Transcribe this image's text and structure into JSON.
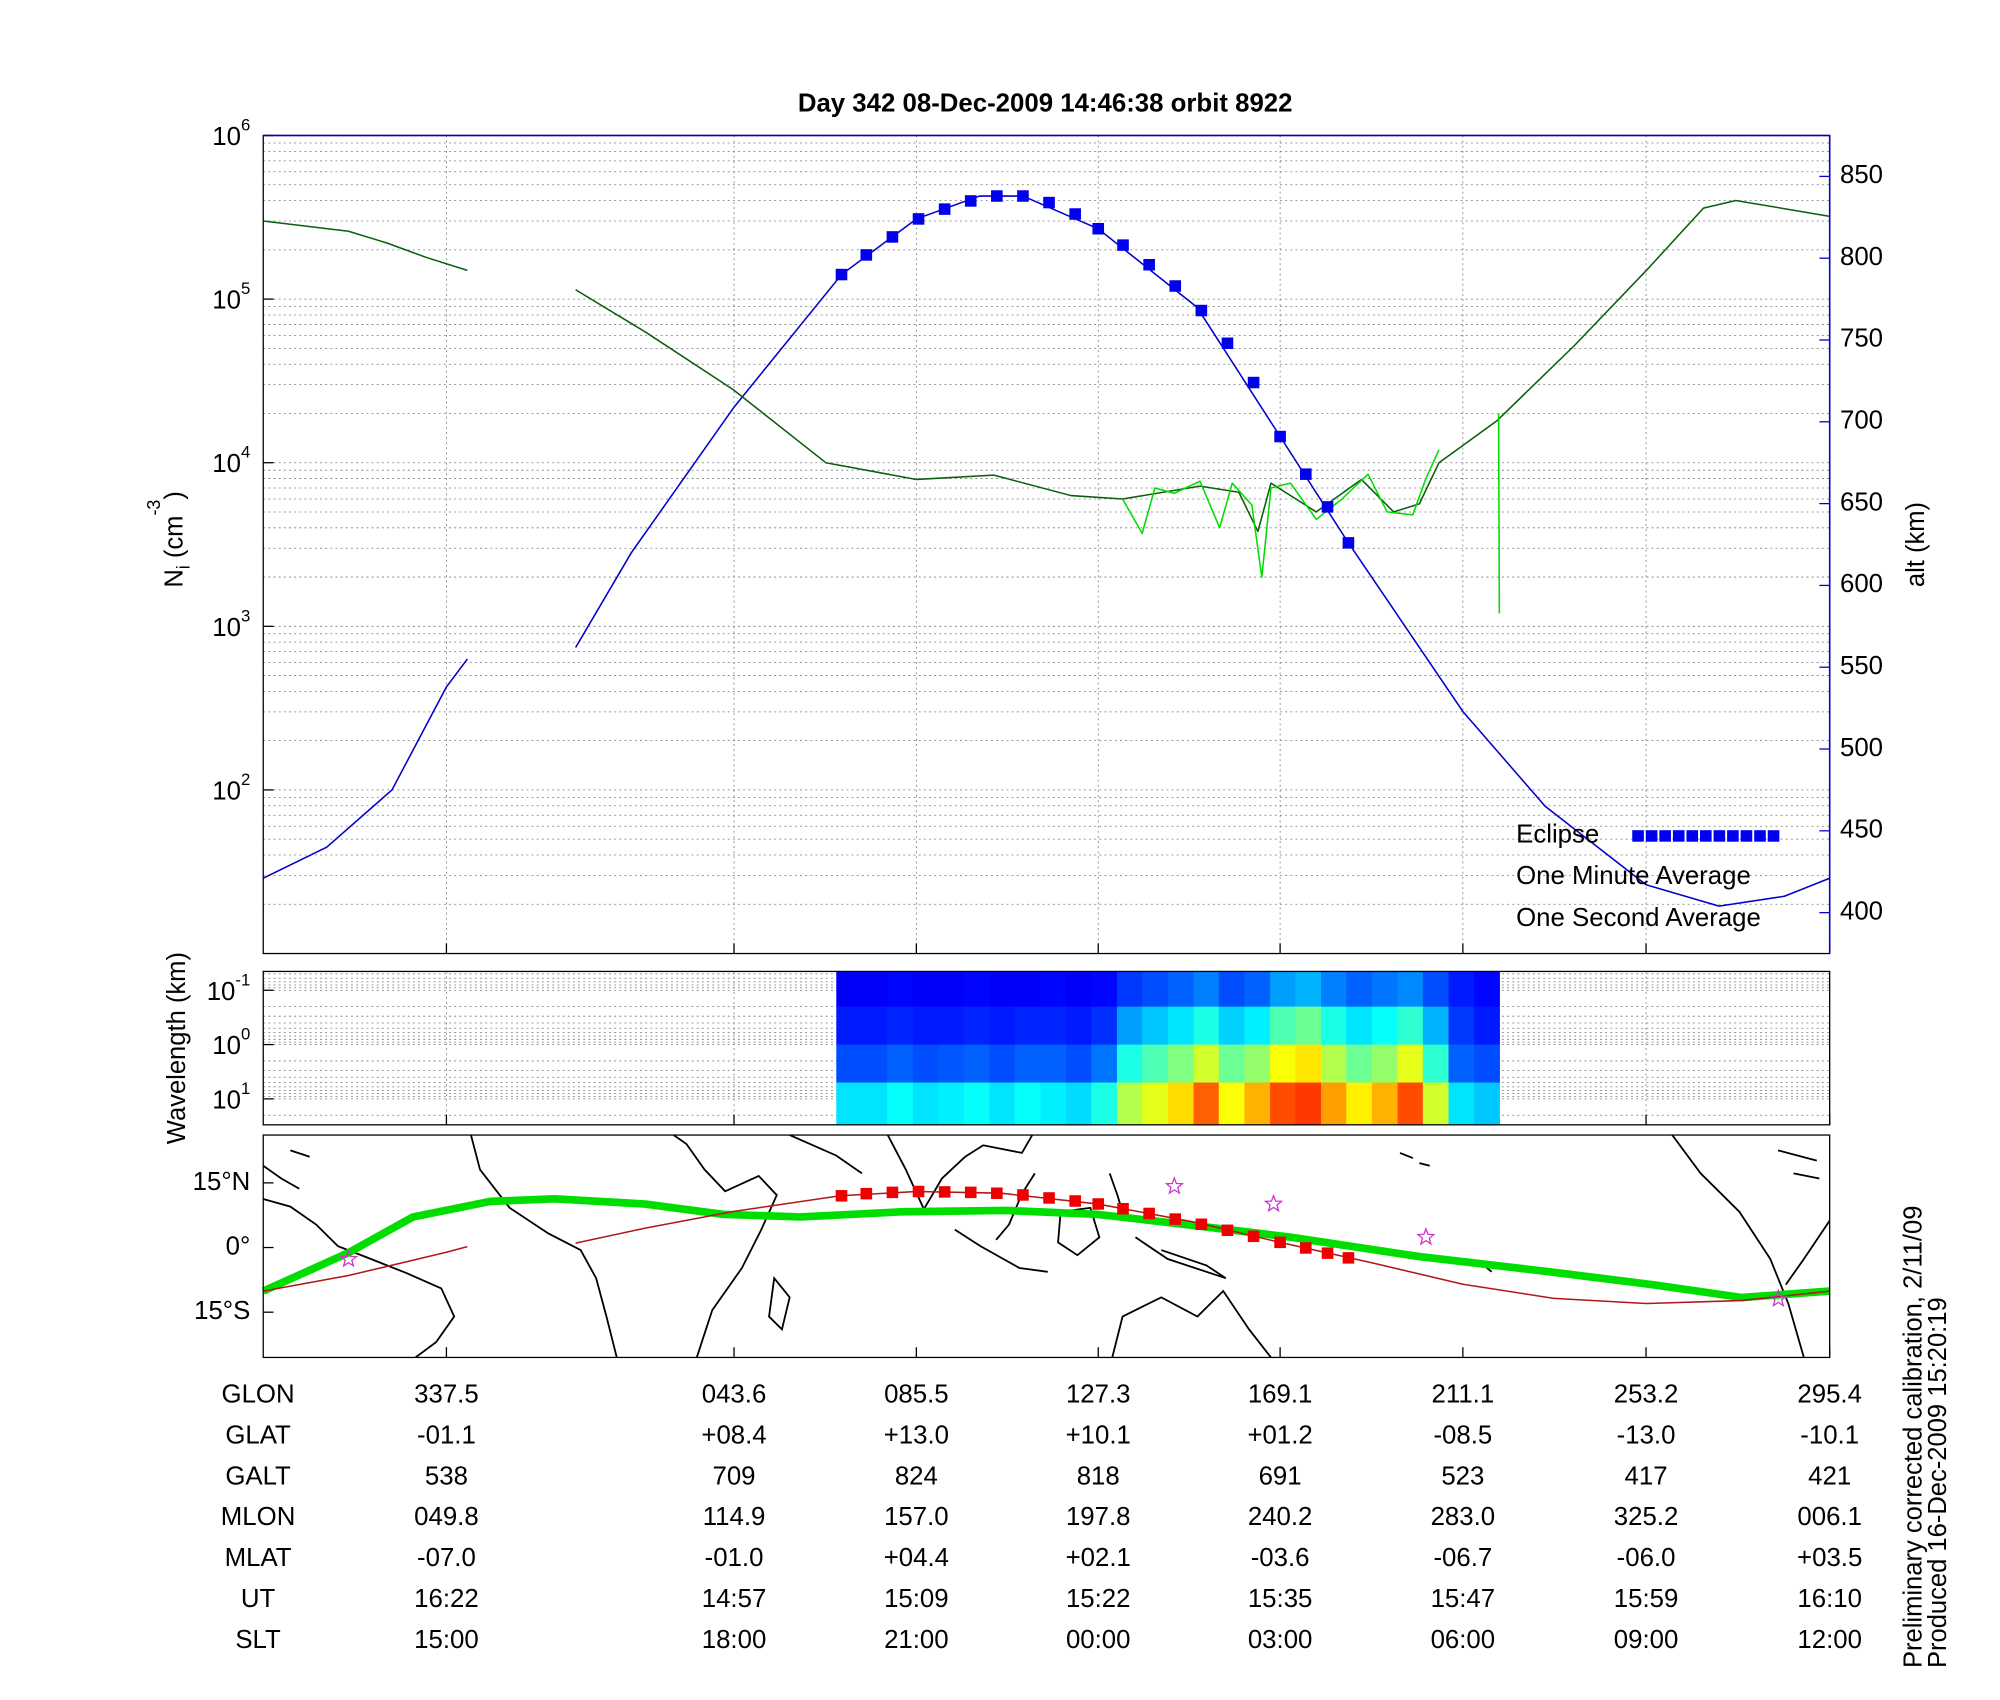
{
  "chart_data": [
    {
      "type": "line",
      "title": "Day 342  08-Dec-2009 14:46:38   orbit 8922",
      "ylabel": [
        {
          "text": "N"
        },
        {
          "text": "i",
          "sub": true
        },
        {
          "text": " (cm"
        },
        {
          "text": "-3",
          "sup": true
        },
        {
          "text": ")"
        }
      ],
      "y2label": "alt (km)",
      "y2color": "#0000cc",
      "xlim": [
        -64.6,
        295.4
      ],
      "xticks": [
        -22.5,
        43.6,
        85.5,
        127.3,
        169.1,
        211.1,
        253.2,
        295.4
      ],
      "ylog": true,
      "ylim": [
        10,
        1000000
      ],
      "yticks": [
        {
          "value": 100,
          "label": "10",
          "exponent": "2"
        },
        {
          "value": 1000,
          "label": "10",
          "exponent": "3"
        },
        {
          "value": 10000,
          "label": "10",
          "exponent": "4"
        },
        {
          "value": 100000,
          "label": "10",
          "exponent": "5"
        },
        {
          "value": 1000000,
          "label": "10",
          "exponent": "6"
        }
      ],
      "y2lim": [
        375,
        875
      ],
      "y2ticks": [
        400,
        450,
        500,
        550,
        600,
        650,
        700,
        750,
        800,
        850
      ],
      "grid": true,
      "minor_grid": true,
      "legend": "lower right",
      "series": [
        {
          "axis": "y2",
          "color": "#0000cc",
          "x": [
            -64.6,
            -50,
            -35,
            -22.5,
            -17.7,
            null,
            7.2,
            20,
            43.6,
            68.3,
            85.5,
            100,
            110,
            127.3,
            150,
            169.1,
            184.8,
            211.1,
            230,
            253.2,
            270,
            285,
            295.4
          ],
          "values": [
            421,
            440,
            475,
            538,
            555,
            null,
            562,
            620,
            709,
            790,
            824,
            838,
            838,
            818,
            770,
            691,
            626,
            523,
            465,
            417,
            404,
            410,
            421
          ]
        },
        {
          "name": "Eclipse",
          "axis": "y2",
          "color": "#0000ee",
          "marker": "square",
          "x": [
            68.3,
            74,
            80,
            86,
            92,
            98,
            104,
            110,
            116,
            122,
            127.3,
            133,
            139,
            145,
            151,
            157,
            163,
            169.1,
            175,
            180,
            184.8
          ],
          "values": [
            790,
            802,
            813,
            824,
            830,
            835,
            838,
            838,
            834,
            827,
            818,
            808,
            796,
            783,
            768,
            748,
            724,
            691,
            668,
            648,
            626
          ]
        },
        {
          "name": "One Minute Average",
          "color": "#0b5e0b",
          "text_color": "#000000",
          "x": [
            -64.6,
            -45.0,
            -36.1,
            -27.2,
            -17.7,
            null,
            7.2,
            23.2,
            43.4,
            64.7,
            85.5,
            103.3,
            121.0,
            132.9,
            150.7,
            159.6,
            164.0,
            167.0,
            177.4,
            187.8,
            195.2,
            201.1,
            205.6,
            218.9,
            236.7,
            253.3,
            266.4,
            273.8,
            284.2,
            295.4
          ],
          "values": [
            300000,
            260000,
            220000,
            180000,
            150000,
            null,
            114000,
            63000,
            28000,
            10000,
            7900,
            8400,
            6300,
            6000,
            7200,
            6600,
            3800,
            7500,
            5000,
            7900,
            5000,
            5600,
            10000,
            18000,
            52000,
            150000,
            360000,
            400000,
            360000,
            320000
          ]
        },
        {
          "name": "One Second Average",
          "color": "#00dd00",
          "x": [
            132.9,
            137.4,
            140.3,
            144.8,
            150.7,
            155.2,
            158.1,
            162.6,
            164.9,
            167.0,
            171.5,
            177.4,
            183.3,
            189.3,
            193.7,
            199.6,
            202.6,
            205.6,
            null,
            219.3,
            219.5
          ],
          "values": [
            6000,
            3700,
            7000,
            6500,
            7700,
            4000,
            7500,
            5500,
            2000,
            7000,
            7500,
            4500,
            6000,
            8500,
            5000,
            4800,
            8000,
            12000,
            null,
            20000,
            1200
          ]
        }
      ]
    },
    {
      "type": "heatmap",
      "ylabel": "Wavelength (km)",
      "xlim": [
        -64.6,
        295.4
      ],
      "xticks": [
        -22.5,
        43.6,
        85.5,
        127.3,
        169.1,
        211.1,
        253.2,
        295.4
      ],
      "ylog": true,
      "yinvert": true,
      "ylim": [
        0.045,
        30
      ],
      "yticks": [
        {
          "value": 0.1,
          "label": "10",
          "exponent": "-1"
        },
        {
          "value": 1,
          "label": "10",
          "exponent": "0"
        },
        {
          "value": 10,
          "label": "10",
          "exponent": "1"
        }
      ],
      "grid": true,
      "minor_grid": true,
      "colormap": "jet",
      "zlim": [
        0,
        1
      ],
      "xbins": [
        67.1,
        73.0,
        78.8,
        84.7,
        90.5,
        96.4,
        102.3,
        108.1,
        114.0,
        119.9,
        125.7,
        131.6,
        137.4,
        143.3,
        149.2,
        155.0,
        160.9,
        166.8,
        172.6,
        178.5,
        184.3,
        190.2,
        196.1,
        201.9,
        207.8,
        213.7,
        219.5
      ],
      "ybins": [
        0.045,
        0.2,
        1,
        5,
        30
      ],
      "z": [
        [
          0.12,
          0.12,
          0.13,
          0.12,
          0.12,
          0.13,
          0.12,
          0.12,
          0.13,
          0.12,
          0.13,
          0.18,
          0.2,
          0.22,
          0.25,
          0.2,
          0.22,
          0.28,
          0.3,
          0.25,
          0.22,
          0.24,
          0.26,
          0.2,
          0.15,
          0.13
        ],
        [
          0.15,
          0.15,
          0.16,
          0.15,
          0.15,
          0.16,
          0.15,
          0.16,
          0.16,
          0.15,
          0.17,
          0.28,
          0.32,
          0.35,
          0.4,
          0.33,
          0.36,
          0.45,
          0.48,
          0.4,
          0.35,
          0.38,
          0.42,
          0.3,
          0.18,
          0.15
        ],
        [
          0.2,
          0.2,
          0.22,
          0.2,
          0.21,
          0.22,
          0.2,
          0.22,
          0.22,
          0.2,
          0.24,
          0.4,
          0.45,
          0.5,
          0.58,
          0.48,
          0.52,
          0.62,
          0.65,
          0.55,
          0.48,
          0.52,
          0.6,
          0.42,
          0.22,
          0.2
        ],
        [
          0.35,
          0.35,
          0.38,
          0.35,
          0.36,
          0.38,
          0.35,
          0.38,
          0.36,
          0.34,
          0.4,
          0.55,
          0.6,
          0.66,
          0.78,
          0.62,
          0.7,
          0.8,
          0.82,
          0.72,
          0.64,
          0.7,
          0.8,
          0.58,
          0.35,
          0.32
        ]
      ]
    },
    {
      "type": "map",
      "xlim": [
        -64.6,
        295.4
      ],
      "xticks": [
        -22.5,
        43.6,
        85.5,
        127.3,
        169.1,
        211.1,
        253.2,
        295.4
      ],
      "ylim": [
        -25.5,
        26.1
      ],
      "yticks": [
        {
          "value": 15,
          "label": "15°N"
        },
        {
          "value": 0,
          "label": "0°"
        },
        {
          "value": -15,
          "label": "15°S"
        }
      ],
      "series": [
        {
          "color": "#00dd00",
          "width": 6,
          "x": [
            -64.6,
            -45.0,
            -30.2,
            -12.4,
            2.4,
            23.2,
            41.0,
            58.8,
            82.5,
            106.2,
            127.0,
            147.7,
            171.5,
            201.1,
            230.8,
            254.5,
            275.2,
            295.4
          ],
          "values": [
            -10.1,
            -1.2,
            7.1,
            10.7,
            11.3,
            10.1,
            7.7,
            7.1,
            8.3,
            8.6,
            7.7,
            5.3,
            2.4,
            -2.1,
            -5.6,
            -8.6,
            -11.6,
            -10.1
          ]
        },
        {
          "color": "#b01818",
          "width": 1.2,
          "x": [
            -64.6,
            -45,
            -22.5,
            -17.7,
            null,
            7.2,
            23.2,
            43.6,
            68,
            85.5,
            105,
            127.3,
            150,
            169.1,
            190,
            211.1,
            232,
            253.2,
            275,
            295.4
          ],
          "values": [
            -10.1,
            -6.5,
            -1.1,
            0.2,
            null,
            1.0,
            4.5,
            8.4,
            12.0,
            13.0,
            12.6,
            10.1,
            5.8,
            1.2,
            -3.5,
            -8.5,
            -11.8,
            -13.0,
            -12.3,
            -10.1
          ]
        },
        {
          "color": "#ee0000",
          "marker": "square",
          "x": [
            68.3,
            74,
            80,
            86,
            92,
            98,
            104,
            110,
            116,
            122,
            127.3,
            133,
            139,
            145,
            151,
            157,
            163,
            169.1,
            175,
            180,
            184.8
          ],
          "values": [
            12.0,
            12.5,
            12.8,
            13.0,
            12.9,
            12.8,
            12.6,
            12.2,
            11.5,
            10.8,
            10.1,
            9.0,
            7.9,
            6.6,
            5.4,
            4.0,
            2.6,
            1.2,
            -0.1,
            -1.3,
            -2.4
          ]
        },
        {
          "color": "#cc33cc",
          "marker": "star",
          "x": [
            -45,
            144.8,
            167.6,
            202.6,
            283.6
          ],
          "values": [
            -2.7,
            14.2,
            10.1,
            2.4,
            -11.9
          ]
        }
      ]
    }
  ],
  "table": {
    "rows": [
      {
        "label": "GLON",
        "values": [
          "337.5",
          "043.6",
          "085.5",
          "127.3",
          "169.1",
          "211.1",
          "253.2",
          "295.4"
        ]
      },
      {
        "label": "GLAT",
        "values": [
          "-01.1",
          "+08.4",
          "+13.0",
          "+10.1",
          "+01.2",
          "-08.5",
          "-13.0",
          "-10.1"
        ]
      },
      {
        "label": "GALT",
        "values": [
          "538",
          "709",
          "824",
          "818",
          "691",
          "523",
          "417",
          "421"
        ]
      },
      {
        "label": "MLON",
        "values": [
          "049.8",
          "114.9",
          "157.0",
          "197.8",
          "240.2",
          "283.0",
          "325.2",
          "006.1"
        ]
      },
      {
        "label": "MLAT",
        "values": [
          "-07.0",
          "-01.0",
          "+04.4",
          "+02.1",
          "-03.6",
          "-06.7",
          "-06.0",
          "+03.5"
        ]
      },
      {
        "label": "UT",
        "values": [
          "16:22",
          "14:57",
          "15:09",
          "15:22",
          "15:35",
          "15:47",
          "15:59",
          "16:10"
        ]
      },
      {
        "label": "SLT",
        "values": [
          "15:00",
          "18:00",
          "21:00",
          "00:00",
          "03:00",
          "06:00",
          "09:00",
          "12:00"
        ]
      }
    ]
  },
  "footer": [
    "Preliminary corrected calibration, 2/11/09",
    "Produced 16-Dec-2009 15:20:19"
  ]
}
